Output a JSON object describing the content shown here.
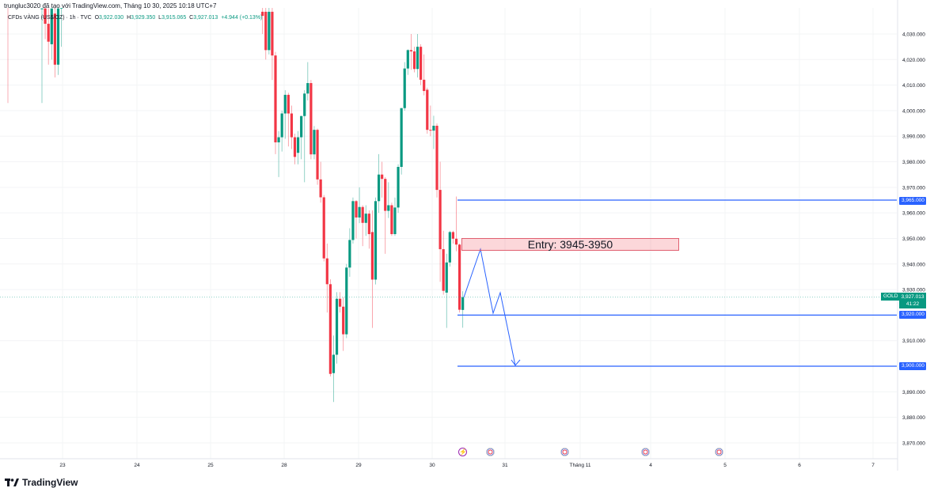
{
  "header": {
    "created_by": "trungluc3020 đã tạo với TradingView.com, Tháng 10 30, 2025 10:18 UTC+7"
  },
  "legend": {
    "symbol": "CFDs VÀNG (US$/OZ) · 1h · TVC",
    "open_label": "O",
    "open": "3,922.030",
    "high_label": "H",
    "high": "3,929.350",
    "low_label": "L",
    "low": "3,915.065",
    "close_label": "C",
    "close": "3,927.013",
    "change": "+4.944 (+0.13%)"
  },
  "price_axis": {
    "ticks": [
      "4,030.000",
      "4,020.000",
      "4,010.000",
      "4,000.000",
      "3,990.000",
      "3,980.000",
      "3,970.000",
      "3,960.000",
      "3,950.000",
      "3,940.000",
      "3,930.000",
      "3,910.000",
      "3,890.000",
      "3,880.000",
      "3,870.000"
    ],
    "tag_3965": "3,965.000",
    "tag_3920": "3,920.000",
    "tag_3900": "3,900.000",
    "symbol_tag": "GOLD",
    "last_price": "3,927.013",
    "countdown": "41:22"
  },
  "time_axis": {
    "ticks": [
      "23",
      "24",
      "25",
      "28",
      "29",
      "30",
      "31",
      "Tháng 11",
      "4",
      "5",
      "6",
      "7"
    ]
  },
  "annotation": {
    "entry_label": "Entry: 3945-3950"
  },
  "events": [
    "lightning-icon",
    "us-flag-icon",
    "us-flag-icon",
    "us-flag-icon",
    "us-flag-icon"
  ],
  "brand": {
    "logo_text": "TradingView"
  },
  "colors": {
    "up": "#089981",
    "down": "#f23645",
    "lines": "#2962ff",
    "entry_fill": "#fcd5d9"
  },
  "chart_data": {
    "type": "candlestick",
    "timeframe": "1h",
    "price_range": [
      3864,
      4040
    ],
    "horizontal_lines": [
      3965,
      3920,
      3900
    ],
    "entry_zone": [
      3945,
      3950
    ],
    "early_candles": [
      [
        4040,
        4041,
        4003,
        4040
      ],
      [
        4040,
        4041,
        4028,
        4034
      ],
      [
        4034,
        4040,
        4018,
        4027
      ],
      [
        4026,
        4040,
        4020,
        4040
      ],
      [
        4038,
        4042,
        4013,
        4018
      ],
      [
        4018,
        4041,
        4014,
        4040
      ],
      [
        4040,
        4042,
        4025,
        4041
      ]
    ],
    "candles": [
      [
        4038.7,
        4042,
        4030,
        4037.1
      ],
      [
        4038.7,
        4042,
        4020,
        4023.7
      ],
      [
        4023.7,
        4042,
        4022,
        4038.7
      ],
      [
        4038.7,
        4042,
        4012,
        4021.6
      ],
      [
        4021.6,
        4023,
        3983,
        3987.6
      ],
      [
        3987.6,
        3992,
        3974,
        3989.6
      ],
      [
        3989.6,
        4000,
        3984,
        3998.9
      ],
      [
        3998.9,
        4008,
        3989,
        4006.2
      ],
      [
        4006.2,
        4007,
        3986,
        3998.9
      ],
      [
        3998.9,
        4002,
        3985,
        3989.6
      ],
      [
        3989.6,
        3991,
        3979,
        3981.9
      ],
      [
        3983.5,
        3992,
        3979,
        3989.6
      ],
      [
        3989.6,
        3998,
        3981,
        3997.9
      ],
      [
        3997.9,
        4008,
        3972,
        4006.7
      ],
      [
        4006.7,
        4019,
        4004,
        4010.8
      ],
      [
        4010.8,
        4012,
        3981,
        3982.9
      ],
      [
        3982.9,
        3994,
        3981,
        3992.5
      ],
      [
        3992.5,
        3993,
        3971,
        3973.1
      ],
      [
        3973.1,
        3980,
        3964,
        3966.1
      ],
      [
        3966.1,
        3967,
        3941,
        3942.2
      ],
      [
        3942.2,
        3948,
        3921,
        3932.1
      ],
      [
        3932.1,
        3934,
        3896,
        3897.0
      ],
      [
        3897.3,
        3912,
        3886,
        3904.5
      ],
      [
        3904.5,
        3929,
        3901,
        3926.4
      ],
      [
        3926.4,
        3929,
        3921,
        3923.3
      ],
      [
        3923.3,
        3927,
        3906,
        3912.5
      ],
      [
        3912.5,
        3940,
        3911,
        3938.6
      ],
      [
        3938.6,
        3954,
        3935,
        3949.4
      ],
      [
        3949.4,
        3966,
        3948,
        3964.6
      ],
      [
        3964.6,
        3965,
        3950,
        3958.2
      ],
      [
        3958.2,
        3970,
        3956,
        3962.3
      ],
      [
        3962.3,
        3963,
        3947,
        3956.1
      ],
      [
        3956.1,
        3963,
        3951,
        3959.7
      ],
      [
        3959.7,
        3961,
        3946,
        3951.7
      ],
      [
        3952.5,
        3961,
        3915,
        3933.9
      ],
      [
        3933.9,
        3966,
        3932,
        3964.6
      ],
      [
        3964.6,
        3983,
        3960,
        3975.0
      ],
      [
        3975.0,
        3980,
        3966,
        3973.3
      ],
      [
        3973.3,
        3974,
        3944,
        3960.8
      ],
      [
        3960.8,
        3972,
        3958,
        3963.0
      ],
      [
        3963.0,
        3964,
        3951,
        3951.7
      ],
      [
        3951.7,
        3966,
        3951,
        3962.1
      ],
      [
        3962.1,
        3979,
        3960,
        3978.0
      ],
      [
        3978.0,
        4001,
        3975,
        4001.0
      ],
      [
        4001.0,
        4019,
        4000,
        4016.5
      ],
      [
        4016.5,
        4024,
        4014,
        4023.7
      ],
      [
        4023.7,
        4030,
        4016,
        4023.2
      ],
      [
        4023.2,
        4025,
        4015,
        4016.3
      ],
      [
        4016.3,
        4030,
        4013,
        4025.0
      ],
      [
        4025.0,
        4026,
        4010,
        4012.1
      ],
      [
        4012.1,
        4022,
        4006,
        4007.7
      ],
      [
        4008.2,
        4009,
        3991,
        3992.5
      ],
      [
        3992.5,
        4002,
        3990,
        3992.2
      ],
      [
        3992.2,
        3998,
        3985,
        3994.1
      ],
      [
        3994.1,
        3995,
        3966,
        3969.0
      ],
      [
        3969.0,
        3980,
        3933,
        3945.8
      ],
      [
        3945.8,
        3953,
        3928,
        3929.5
      ],
      [
        3928.8,
        3944,
        3915,
        3940.6
      ],
      [
        3940.6,
        3953,
        3939,
        3952.5
      ],
      [
        3952.5,
        3953,
        3948,
        3949.9
      ],
      [
        3949.9,
        3966.4,
        3945,
        3947.6
      ],
      [
        3947.6,
        3948,
        3921,
        3922.1
      ],
      [
        3922.03,
        3929.35,
        3915.065,
        3927.013
      ]
    ]
  }
}
